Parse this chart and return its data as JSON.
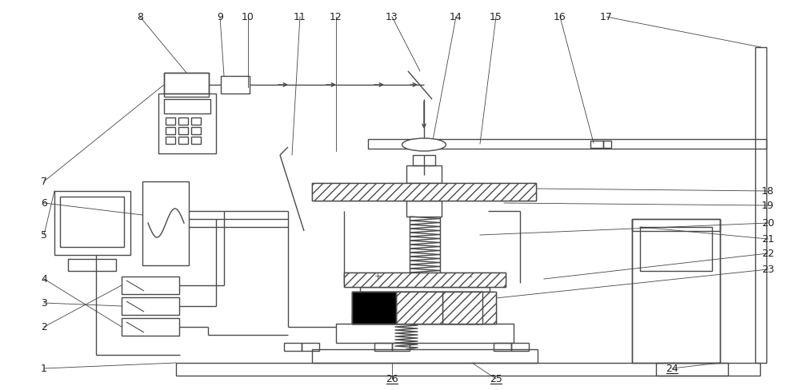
{
  "bg_color": "#ffffff",
  "lc": "#4a4a4a",
  "lc2": "#666666",
  "fig_width": 10.0,
  "fig_height": 4.89
}
